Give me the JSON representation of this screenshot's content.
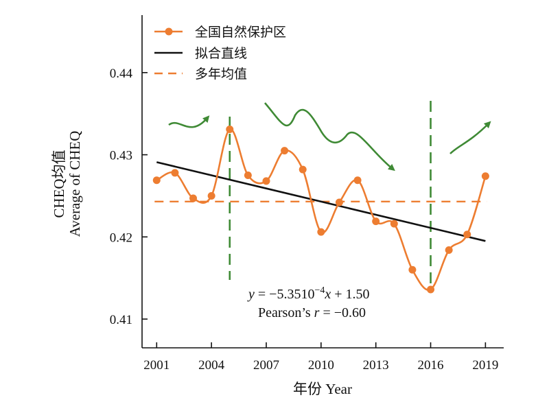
{
  "chart_data": {
    "type": "line",
    "xlabel": "年份 Year",
    "ylabel_line1": "CHEQ均值",
    "ylabel_line2": "Average of CHEQ",
    "x_ticks": [
      "2001",
      "2004",
      "2007",
      "2010",
      "2013",
      "2016",
      "2019"
    ],
    "y_ticks": [
      "0.41",
      "0.42",
      "0.43",
      "0.44"
    ],
    "xlim": [
      2000.2,
      2020.0
    ],
    "ylim": [
      0.4065,
      0.447
    ],
    "legend_position": "top-left",
    "series": [
      {
        "name": "全国自然保护区",
        "color": "#ED7D31",
        "x": [
          2001,
          2002,
          2003,
          2004,
          2005,
          2006,
          2007,
          2008,
          2009,
          2010,
          2011,
          2012,
          2013,
          2014,
          2015,
          2016,
          2017,
          2018,
          2019
        ],
        "values": [
          0.4269,
          0.4278,
          0.4247,
          0.425,
          0.4331,
          0.4275,
          0.4268,
          0.4305,
          0.4282,
          0.4206,
          0.4242,
          0.4269,
          0.4219,
          0.4216,
          0.416,
          0.4136,
          0.4184,
          0.4203,
          0.4274
        ]
      },
      {
        "name": "拟合直线",
        "color": "#111111",
        "x": [
          2001,
          2019
        ],
        "values": [
          0.4291,
          0.4195
        ]
      },
      {
        "name": "多年均值",
        "color": "#ED7D31",
        "value": 0.4243
      }
    ],
    "vertical_markers": [
      2005,
      2016
    ],
    "annotations": {
      "equation_prefix": "y",
      "equation_mid": " = −5.3510",
      "equation_exp": "−4",
      "equation_var": "x",
      "equation_suffix": " + 1.50",
      "pearson_prefix": "Pearson’s ",
      "pearson_var": "r",
      "pearson_suffix": " = −0.60"
    },
    "arrow_color": "#3F8A35",
    "marker_color": "#3F8A35"
  }
}
